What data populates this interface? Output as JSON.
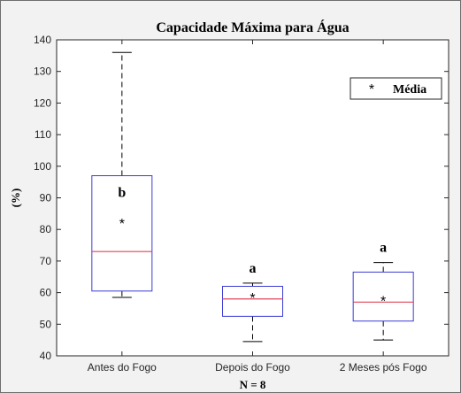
{
  "chart_data": {
    "type": "box",
    "title": "Capacidade Máxima para Água",
    "xlabel": "N = 8",
    "ylabel": "(%)",
    "ylim": [
      40,
      140
    ],
    "yticks": [
      40,
      50,
      60,
      70,
      80,
      90,
      100,
      110,
      120,
      130,
      140
    ],
    "categories": [
      "Antes do Fogo",
      "Depois do Fogo",
      "2 Meses pós Fogo"
    ],
    "boxes": [
      {
        "category": "Antes do Fogo",
        "whisker_low": 58.5,
        "q1": 60.5,
        "median": 73,
        "q3": 97,
        "whisker_high": 136,
        "mean": 82,
        "group_letter": "b"
      },
      {
        "category": "Depois do Fogo",
        "whisker_low": 44.5,
        "q1": 52.5,
        "median": 58,
        "q3": 62,
        "whisker_high": 63,
        "mean": 58.5,
        "group_letter": "a"
      },
      {
        "category": "2 Meses pós Fogo",
        "whisker_low": 45,
        "q1": 51,
        "median": 57,
        "q3": 66.5,
        "whisker_high": 69.5,
        "mean": 57.5,
        "group_letter": "a"
      }
    ],
    "legend": {
      "label": "Média",
      "marker": "*",
      "position": "top-right"
    },
    "grid": false,
    "colors": {
      "box": "#3b3bd6",
      "median": "#e0455a",
      "whisker": "#000000",
      "background": "#f2f2f2",
      "axes": "#ffffff"
    }
  }
}
